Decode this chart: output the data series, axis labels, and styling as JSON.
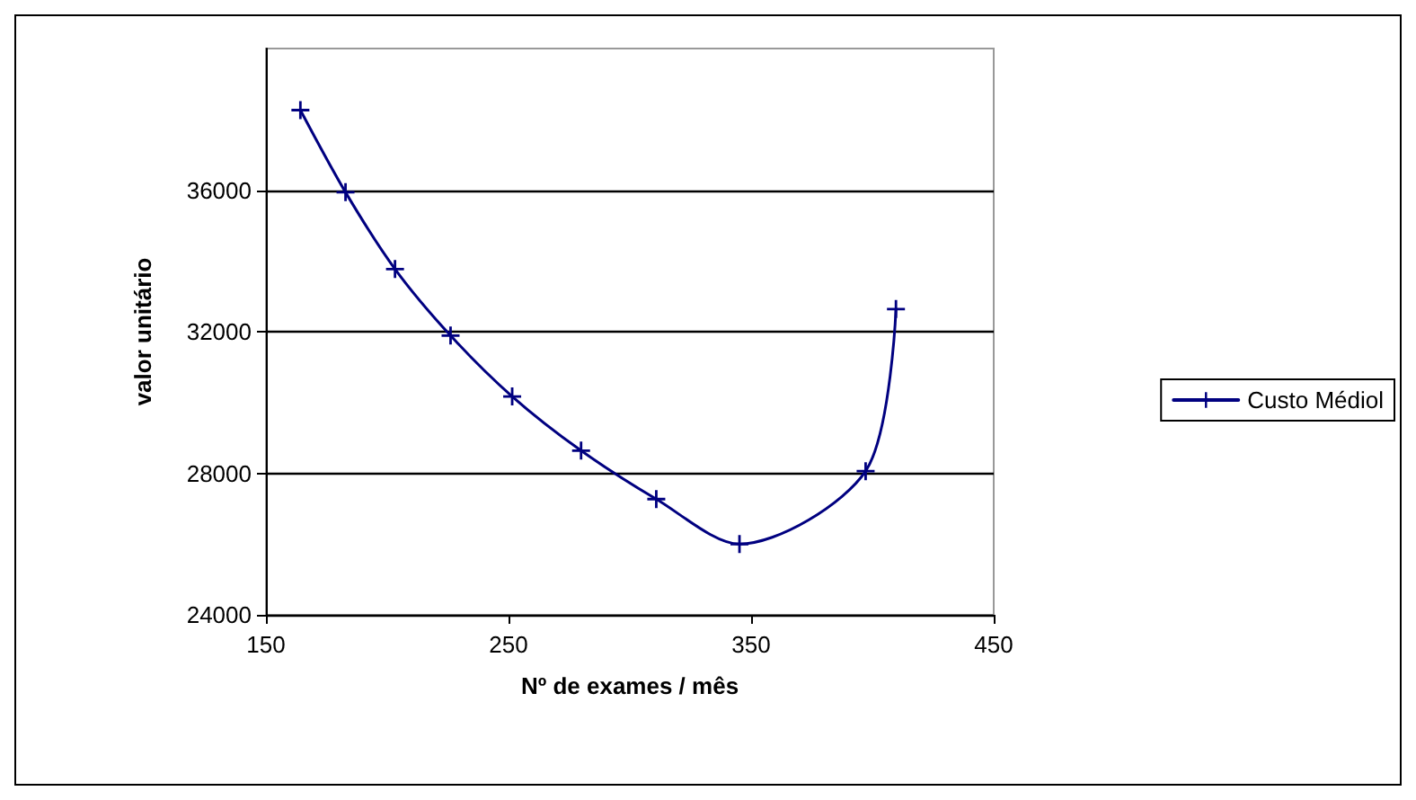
{
  "chart_data": {
    "type": "line",
    "xlabel": "Nº de exames / mês",
    "ylabel": "valor unitário",
    "series": [
      {
        "name": "Custo Médiol",
        "color": "#000080",
        "x": [
          164.2,
          182.8,
          203.2,
          226.1,
          251.5,
          279.9,
          310.9,
          345.2,
          397.2,
          409.7
        ],
        "values": [
          38260,
          35940,
          33770,
          31890,
          30170,
          28640,
          27270,
          26000,
          28060,
          32640
        ]
      }
    ],
    "xlim": [
      150,
      450
    ],
    "xticks": [
      150,
      250,
      350,
      450
    ],
    "ylim": [
      24000,
      40000
    ],
    "yticks": [
      24000,
      28000,
      32000,
      36000
    ],
    "grid": "y",
    "legend": "right",
    "marker": "cross",
    "line_style": "solid"
  }
}
